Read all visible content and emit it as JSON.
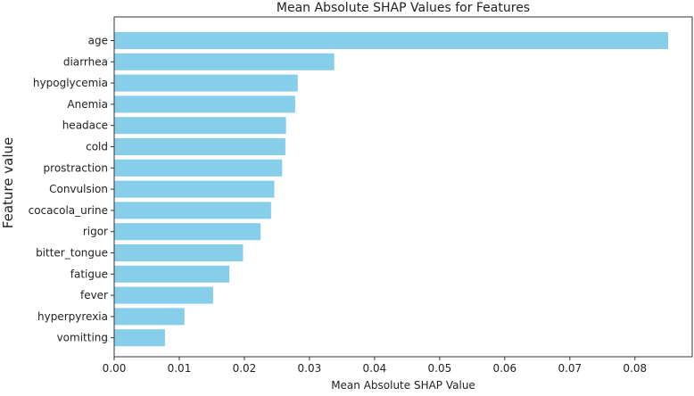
{
  "chart_data": {
    "type": "bar",
    "orientation": "horizontal",
    "title": "Mean Absolute SHAP Values for Features",
    "xlabel": "Mean Absolute SHAP Value",
    "ylabel": "Feature value",
    "xlim": [
      0,
      0.0888
    ],
    "xticks": [
      "0.00",
      "0.01",
      "0.02",
      "0.03",
      "0.04",
      "0.05",
      "0.06",
      "0.07",
      "0.08"
    ],
    "categories": [
      "age",
      "diarrhea",
      "hypoglycemia",
      "Anemia",
      "headace",
      "cold",
      "prostraction",
      "Convulsion",
      "cocacola_urine",
      "rigor",
      "bitter_tongue",
      "fatigue",
      "fever",
      "hyperpyrexia",
      "vomitting"
    ],
    "values": [
      0.0851,
      0.0338,
      0.0282,
      0.0278,
      0.0264,
      0.0263,
      0.0258,
      0.0246,
      0.0241,
      0.0225,
      0.0198,
      0.0177,
      0.0152,
      0.0108,
      0.0078
    ],
    "bar_color": "#87ceeb",
    "grid": false
  }
}
